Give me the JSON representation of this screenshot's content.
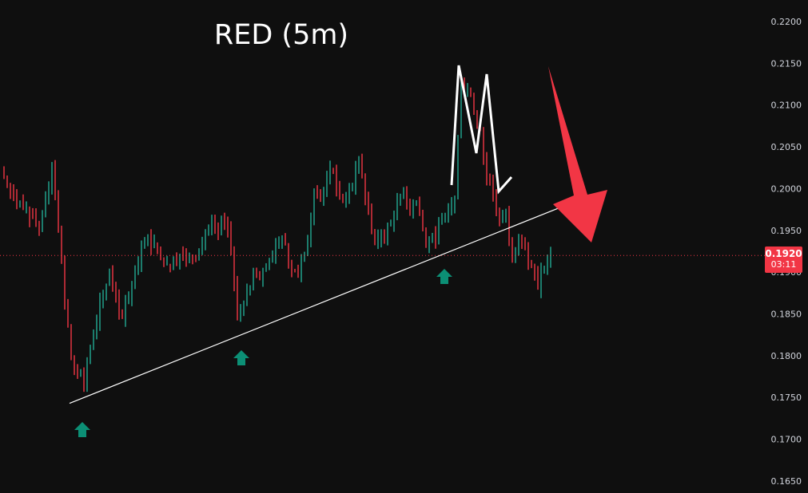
{
  "chart_data": {
    "type": "candlestick",
    "title": "RED (5m)",
    "ylim": [
      0.1625,
      0.2225
    ],
    "y_ticks": [
      "0.2200",
      "0.2150",
      "0.2100",
      "0.2050",
      "0.2000",
      "0.1950",
      "0.1900",
      "0.1850",
      "0.1800",
      "0.1750",
      "0.1700",
      "0.1650"
    ],
    "first_open": 0.202,
    "closes": [
      0.2006,
      0.199,
      0.1985,
      0.1978,
      0.1965,
      0.195,
      0.1985,
      0.203,
      0.195,
      0.186,
      0.18,
      0.178,
      0.1762,
      0.181,
      0.184,
      0.187,
      0.19,
      0.1875,
      0.1845,
      0.187,
      0.1905,
      0.193,
      0.1945,
      0.1935,
      0.1915,
      0.191,
      0.1918,
      0.1922,
      0.1915,
      0.192,
      0.1925,
      0.1945,
      0.1958,
      0.195,
      0.196,
      0.193,
      0.185,
      0.186,
      0.188,
      0.1895,
      0.1905,
      0.1915,
      0.193,
      0.194,
      0.191,
      0.19,
      0.1915,
      0.194,
      0.2,
      0.199,
      0.201,
      0.202,
      0.199,
      0.1985,
      0.2,
      0.2035,
      0.199,
      0.195,
      0.194,
      0.1935,
      0.196,
      0.1985,
      0.2,
      0.197,
      0.1985,
      0.195,
      0.1935,
      0.194,
      0.196,
      0.1975,
      0.199,
      0.213,
      0.212,
      0.209,
      0.207,
      0.201,
      0.199,
      0.196,
      0.197,
      0.192,
      0.1945,
      0.193,
      0.1905,
      0.188,
      0.1905,
      0.192
    ],
    "current_price": "0.1920",
    "countdown": "03:11",
    "trendline": {
      "from_price": 0.1743,
      "to_price": 0.1979
    },
    "colors": {
      "up": "#22ab94",
      "down": "#f23645",
      "background": "#0f0f0f",
      "arrow": "#f23645",
      "up_marker": "#0c8f75"
    },
    "annotations": [
      "trendline",
      "double-top-M",
      "down-arrow",
      "support-up-arrows-3"
    ]
  }
}
